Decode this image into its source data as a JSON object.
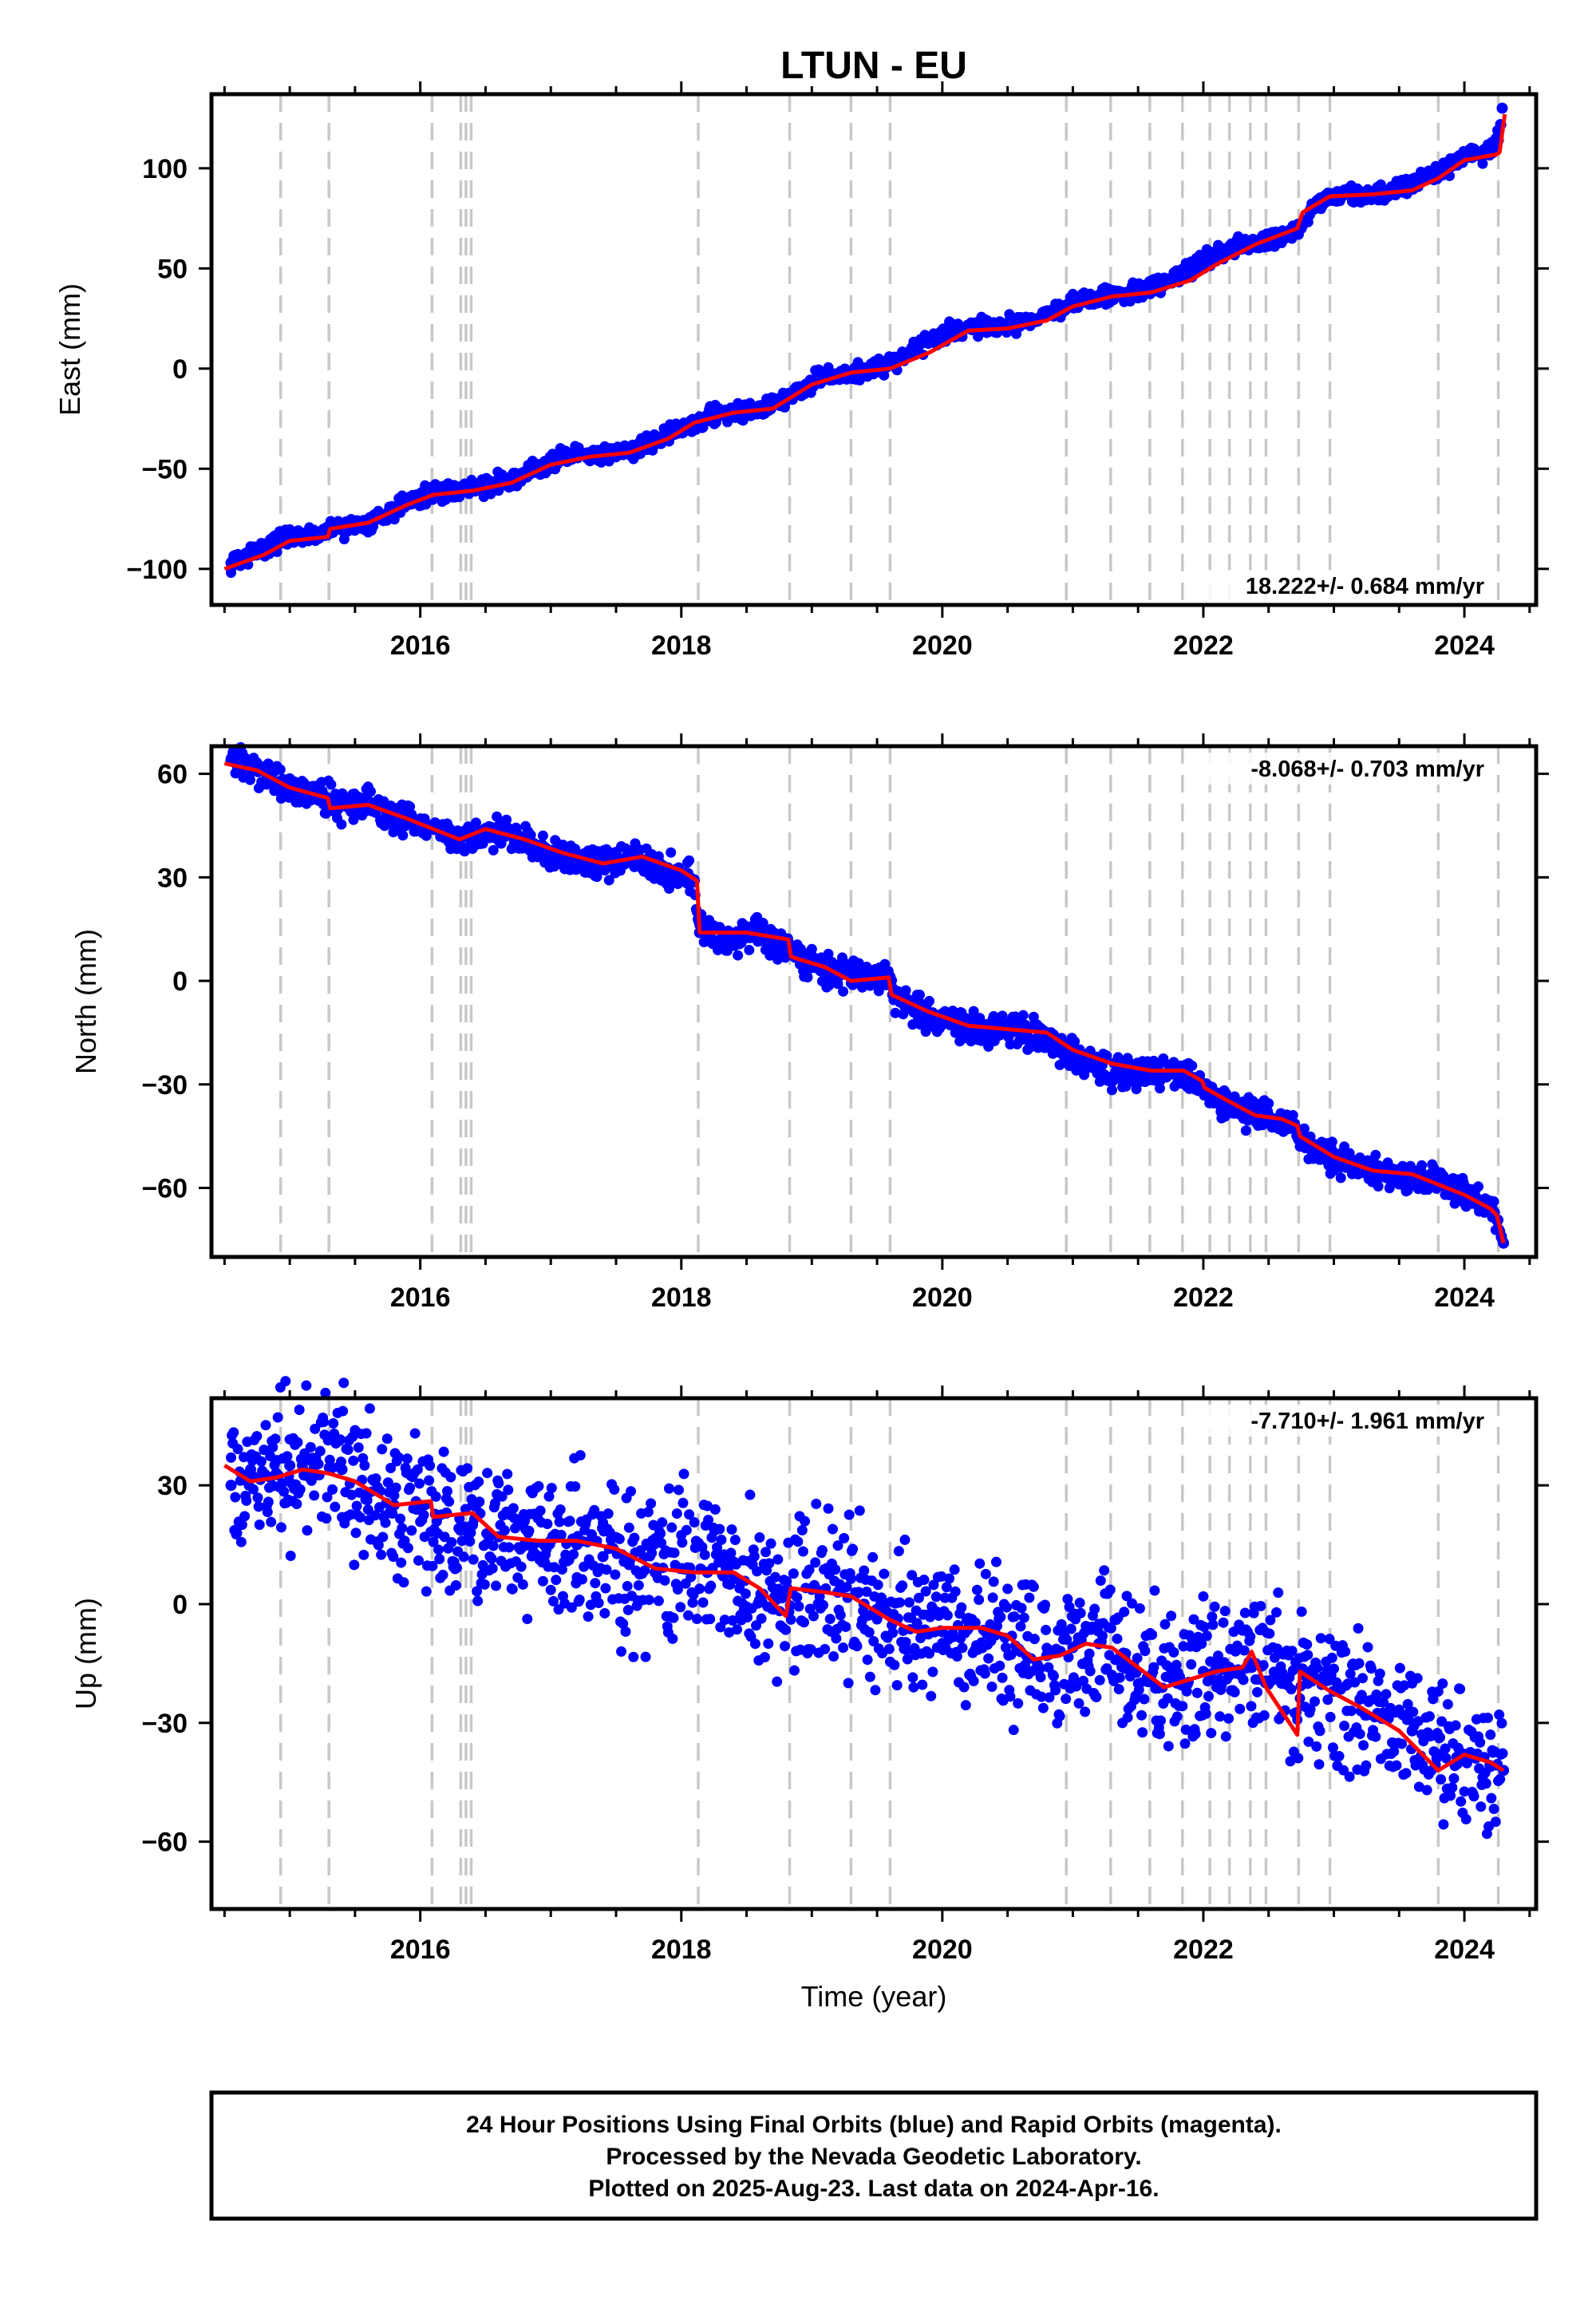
{
  "title": "LTUN - EU",
  "xlabel": "Time (year)",
  "footer": {
    "line1": "24 Hour Positions Using Final Orbits (blue) and Rapid Orbits (magenta).",
    "line2": "Processed by the Nevada Geodetic Laboratory.",
    "line3": "Plotted on 2025-Aug-23. Last data on 2024-Apr-16."
  },
  "colors": {
    "observations": "#0000ff",
    "model": "#ff0000",
    "event_lines": "#c8c8c8"
  },
  "chart_data": [
    {
      "type": "scatter",
      "panel": "east",
      "title": "LTUN - EU",
      "xlabel": "",
      "ylabel": "East (mm)",
      "xlim": [
        2014.4,
        2024.55
      ],
      "ylim": [
        -118,
        137
      ],
      "xticks": [
        2016,
        2018,
        2020,
        2022,
        2024
      ],
      "yticks": [
        -100,
        -50,
        0,
        50,
        100
      ],
      "ytick_labels": [
        "−100",
        "−50",
        "0",
        "50",
        "100"
      ],
      "rate_label": "18.222+/- 0.684 mm/yr",
      "rate_position": "bottom-right",
      "event_lines": [
        2014.93,
        2015.3,
        2016.09,
        2016.31,
        2016.35,
        2016.39,
        2018.13,
        2018.83,
        2019.3,
        2019.6,
        2020.95,
        2021.29,
        2021.59,
        2021.84,
        2022.05,
        2022.2,
        2022.36,
        2022.48,
        2022.73,
        2022.97,
        2023.8,
        2024.26
      ],
      "series": [
        {
          "name": "Final Orbits (blue)",
          "x": [
            2014.55,
            2014.7,
            2014.85,
            2015.0,
            2015.15,
            2015.29,
            2015.3,
            2015.45,
            2015.6,
            2015.75,
            2015.9,
            2016.05,
            2016.2,
            2016.4,
            2016.6,
            2016.8,
            2017.0,
            2017.2,
            2017.4,
            2017.6,
            2017.8,
            2018.0,
            2018.2,
            2018.4,
            2018.6,
            2018.8,
            2019.0,
            2019.2,
            2019.4,
            2019.6,
            2019.8,
            2020.0,
            2020.2,
            2020.4,
            2020.6,
            2020.8,
            2021.0,
            2021.2,
            2021.4,
            2021.6,
            2021.8,
            2022.0,
            2022.2,
            2022.4,
            2022.6,
            2022.75,
            2022.85,
            2023.0,
            2023.2,
            2023.4,
            2023.6,
            2023.8,
            2024.0,
            2024.2,
            2024.26,
            2024.29
          ],
          "y": [
            -97,
            -93,
            -87,
            -84,
            -83,
            -83,
            -80,
            -79,
            -77,
            -72,
            -66,
            -63,
            -62,
            -60,
            -57,
            -52,
            -46,
            -44,
            -43,
            -41,
            -36,
            -30,
            -24,
            -22,
            -21,
            -15,
            -7,
            -3,
            -2,
            2,
            10,
            18,
            20,
            21,
            23,
            27,
            33,
            36,
            37,
            40,
            46,
            54,
            60,
            63,
            66,
            70,
            82,
            86,
            87,
            88,
            92,
            98,
            106,
            108,
            114,
            130
          ]
        },
        {
          "name": "Model fit (red)",
          "x": [
            2014.5,
            2014.8,
            2015.0,
            2015.29,
            2015.31,
            2015.6,
            2015.9,
            2016.1,
            2016.4,
            2016.7,
            2017.0,
            2017.3,
            2017.6,
            2017.9,
            2018.1,
            2018.4,
            2018.7,
            2019.0,
            2019.3,
            2019.6,
            2019.9,
            2020.2,
            2020.5,
            2020.8,
            2021.0,
            2021.3,
            2021.6,
            2021.9,
            2022.1,
            2022.4,
            2022.72,
            2022.76,
            2022.97,
            2023.3,
            2023.6,
            2023.8,
            2024.0,
            2024.25,
            2024.27,
            2024.31
          ],
          "y": [
            -100,
            -93,
            -86,
            -84,
            -80,
            -77,
            -68,
            -63,
            -61,
            -57,
            -48,
            -44,
            -42,
            -35,
            -27,
            -22,
            -20,
            -8,
            -2,
            0,
            8,
            19,
            20,
            24,
            31,
            36,
            38,
            44,
            52,
            62,
            70,
            78,
            86,
            87,
            89,
            95,
            104,
            107,
            108,
            127
          ]
        }
      ]
    },
    {
      "type": "scatter",
      "panel": "north",
      "title": "",
      "xlabel": "",
      "ylabel": "North (mm)",
      "xlim": [
        2014.4,
        2024.55
      ],
      "ylim": [
        -80,
        68
      ],
      "xticks": [
        2016,
        2018,
        2020,
        2022,
        2024
      ],
      "yticks": [
        -60,
        -30,
        0,
        30,
        60
      ],
      "ytick_labels": [
        "−60",
        "−30",
        "0",
        "30",
        "60"
      ],
      "rate_label": "-8.068+/- 0.703 mm/yr",
      "rate_position": "top-right",
      "event_lines": [
        2014.93,
        2015.3,
        2016.09,
        2016.31,
        2016.35,
        2016.39,
        2018.13,
        2018.83,
        2019.3,
        2019.6,
        2020.95,
        2021.29,
        2021.59,
        2021.84,
        2022.05,
        2022.2,
        2022.36,
        2022.48,
        2022.73,
        2022.97,
        2023.8,
        2024.26
      ],
      "series": [
        {
          "name": "Final Orbits (blue)",
          "x": [
            2014.55,
            2014.75,
            2015.0,
            2015.29,
            2015.35,
            2015.6,
            2015.8,
            2016.0,
            2016.3,
            2016.5,
            2016.7,
            2017.0,
            2017.2,
            2017.4,
            2017.6,
            2017.8,
            2018.0,
            2018.1,
            2018.14,
            2018.3,
            2018.6,
            2018.83,
            2019.0,
            2019.3,
            2019.6,
            2019.62,
            2019.8,
            2020.0,
            2020.3,
            2020.6,
            2020.8,
            2021.0,
            2021.2,
            2021.4,
            2021.6,
            2021.8,
            2022.0,
            2022.1,
            2022.3,
            2022.5,
            2022.7,
            2022.8,
            2023.0,
            2023.2,
            2023.4,
            2023.6,
            2023.8,
            2024.0,
            2024.2,
            2024.3
          ],
          "y": [
            64,
            61,
            56,
            53,
            51,
            51,
            48,
            45,
            41,
            43,
            42,
            37,
            35,
            34,
            36,
            33,
            31,
            29,
            14,
            12,
            14,
            9,
            5,
            2,
            1,
            -4,
            -8,
            -12,
            -14,
            -14,
            -17,
            -21,
            -25,
            -27,
            -26,
            -27,
            -30,
            -35,
            -38,
            -39,
            -42,
            -48,
            -52,
            -54,
            -57,
            -56,
            -58,
            -62,
            -65,
            -76
          ]
        },
        {
          "name": "Model fit (red)",
          "x": [
            2014.5,
            2014.75,
            2015.0,
            2015.29,
            2015.31,
            2015.6,
            2015.9,
            2016.1,
            2016.3,
            2016.5,
            2016.8,
            2017.1,
            2017.4,
            2017.7,
            2018.0,
            2018.12,
            2018.14,
            2018.5,
            2018.82,
            2018.84,
            2019.1,
            2019.3,
            2019.59,
            2019.61,
            2019.9,
            2020.2,
            2020.5,
            2020.8,
            2021.0,
            2021.3,
            2021.6,
            2021.85,
            2021.99,
            2022.01,
            2022.2,
            2022.4,
            2022.6,
            2022.72,
            2022.74,
            2023.0,
            2023.3,
            2023.6,
            2023.8,
            2024.0,
            2024.2,
            2024.25,
            2024.3
          ],
          "y": [
            63,
            61,
            56,
            53,
            50,
            51,
            47,
            44,
            41,
            44,
            41,
            37,
            34,
            36,
            32,
            29,
            14,
            14,
            12,
            7,
            4,
            0,
            1,
            -4,
            -9,
            -13,
            -14,
            -15,
            -20,
            -24,
            -26,
            -26,
            -29,
            -31,
            -35,
            -39,
            -40,
            -42,
            -45,
            -51,
            -55,
            -56,
            -59,
            -62,
            -66,
            -68,
            -76
          ]
        }
      ]
    },
    {
      "type": "scatter",
      "panel": "up",
      "title": "",
      "xlabel": "Time (year)",
      "ylabel": "Up (mm)",
      "xlim": [
        2014.4,
        2024.55
      ],
      "ylim": [
        -77,
        52
      ],
      "xticks": [
        2016,
        2018,
        2020,
        2022,
        2024
      ],
      "yticks": [
        -60,
        -30,
        0,
        30
      ],
      "ytick_labels": [
        "−60",
        "−30",
        "0",
        "30"
      ],
      "rate_label": "-7.710+/- 1.961 mm/yr",
      "rate_position": "top-right",
      "event_lines": [
        2014.93,
        2015.3,
        2016.09,
        2016.31,
        2016.35,
        2016.39,
        2018.13,
        2018.83,
        2019.3,
        2019.6,
        2020.95,
        2021.29,
        2021.59,
        2021.84,
        2022.05,
        2022.2,
        2022.36,
        2022.48,
        2022.73,
        2022.97,
        2023.8,
        2024.26
      ],
      "series": [
        {
          "name": "Final Orbits (blue)",
          "x": [
            2014.55,
            2014.7,
            2014.85,
            2015.0,
            2015.2,
            2015.4,
            2015.6,
            2015.8,
            2016.0,
            2016.2,
            2016.4,
            2016.6,
            2016.8,
            2017.0,
            2017.2,
            2017.4,
            2017.6,
            2017.8,
            2018.0,
            2018.2,
            2018.4,
            2018.6,
            2018.8,
            2019.0,
            2019.2,
            2019.4,
            2019.6,
            2019.8,
            2020.0,
            2020.2,
            2020.4,
            2020.6,
            2020.8,
            2021.0,
            2021.2,
            2021.4,
            2021.6,
            2021.8,
            2022.0,
            2022.2,
            2022.4,
            2022.6,
            2022.8,
            2023.0,
            2023.2,
            2023.4,
            2023.6,
            2023.8,
            2024.0,
            2024.2,
            2024.3
          ],
          "y": [
            30,
            34,
            32,
            35,
            36,
            34,
            28,
            25,
            25,
            23,
            20,
            17,
            15,
            16,
            15,
            12,
            10,
            8,
            9,
            8,
            7,
            1,
            2,
            4,
            3,
            0,
            -3,
            -6,
            -7,
            -6,
            -7,
            -12,
            -13,
            -11,
            -10,
            -14,
            -18,
            -20,
            -17,
            -16,
            -15,
            -20,
            -20,
            -22,
            -24,
            -28,
            -32,
            -38,
            -38,
            -41,
            -42
          ]
        },
        {
          "name": "Model fit (red)",
          "x": [
            2014.5,
            2014.7,
            2014.9,
            2015.1,
            2015.3,
            2015.5,
            2015.8,
            2016.08,
            2016.1,
            2016.4,
            2016.6,
            2016.9,
            2017.2,
            2017.5,
            2017.8,
            2018.1,
            2018.4,
            2018.6,
            2018.8,
            2018.84,
            2019.1,
            2019.3,
            2019.6,
            2019.8,
            2020.0,
            2020.3,
            2020.5,
            2020.7,
            2020.9,
            2021.1,
            2021.3,
            2021.5,
            2021.7,
            2021.9,
            2022.1,
            2022.3,
            2022.37,
            2022.48,
            2022.72,
            2022.74,
            2022.97,
            2023.2,
            2023.5,
            2023.8,
            2024.0,
            2024.2,
            2024.3
          ],
          "y": [
            35,
            31,
            32,
            34,
            33,
            31,
            25,
            26,
            22,
            23,
            17,
            16,
            16,
            14,
            9,
            8,
            8,
            4,
            -3,
            4,
            3,
            2,
            -4,
            -7,
            -6,
            -6,
            -8,
            -14,
            -13,
            -10,
            -11,
            -16,
            -21,
            -19,
            -17,
            -16,
            -12,
            -21,
            -33,
            -17,
            -22,
            -26,
            -32,
            -42,
            -38,
            -40,
            -42
          ]
        }
      ]
    }
  ]
}
